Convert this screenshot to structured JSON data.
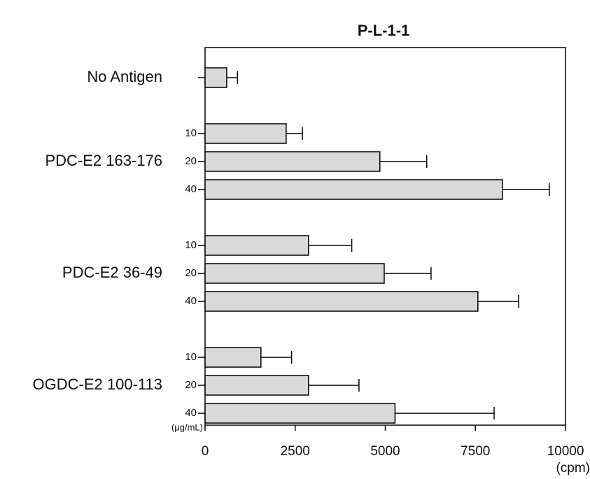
{
  "chart_data": {
    "type": "hbar",
    "title": "P-L-1-1",
    "x_unit": "(cpm)",
    "dose_unit": "(μg/mL)",
    "color": "#d9d9d9",
    "groups": [
      {
        "name": "No Antigen",
        "doses": [
          null
        ],
        "values": [
          600
        ],
        "errors": [
          300
        ]
      },
      {
        "name": "PDC-E2 163-176",
        "doses": [
          "10",
          "20",
          "40"
        ],
        "values": [
          2250,
          4850,
          8250
        ],
        "errors": [
          450,
          1300,
          1300
        ]
      },
      {
        "name": "PDC-E2 36-49",
        "doses": [
          "10",
          "20",
          "40"
        ],
        "values": [
          2870,
          4970,
          7570
        ],
        "errors": [
          1200,
          1300,
          1130
        ]
      },
      {
        "name": "OGDC-E2 100-113",
        "doses": [
          "10",
          "20",
          "40"
        ],
        "values": [
          1550,
          2870,
          5270
        ],
        "errors": [
          850,
          1400,
          2750
        ]
      }
    ],
    "xlim": [
      0,
      10000
    ],
    "xticks": [
      0,
      2500,
      5000,
      7500,
      10000
    ]
  }
}
